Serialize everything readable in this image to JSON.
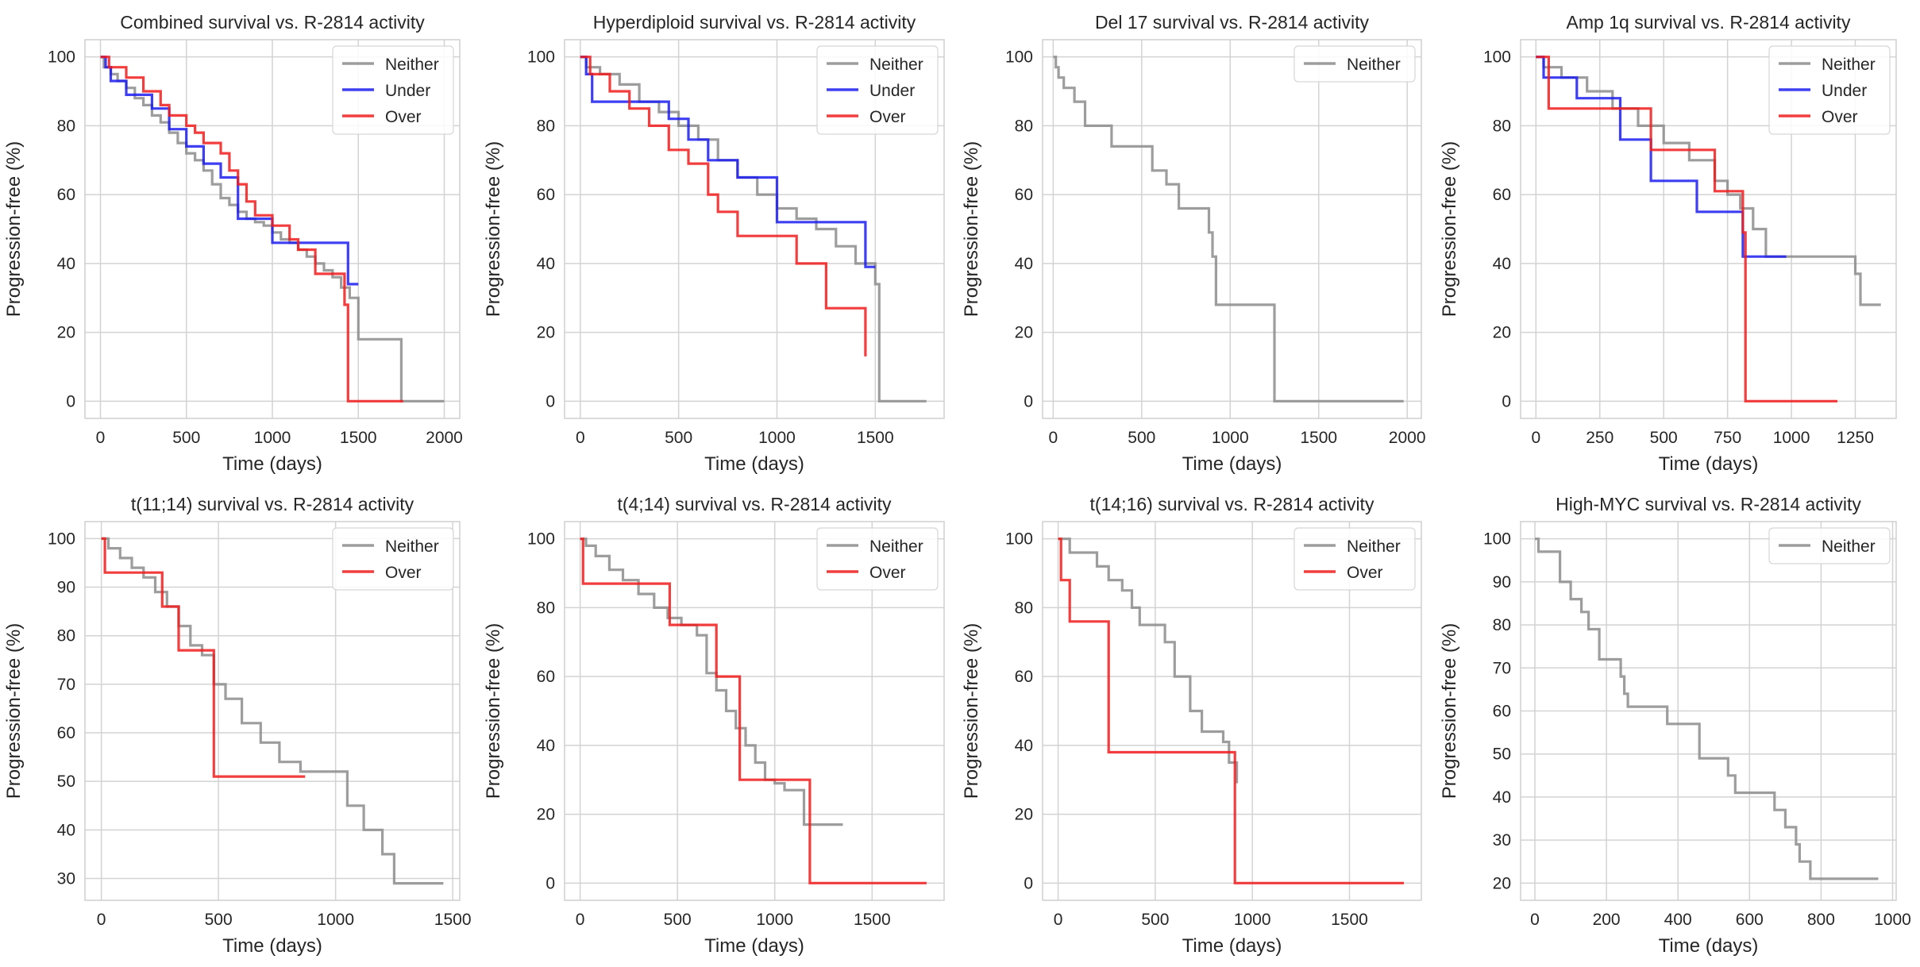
{
  "figure": {
    "background": "#ffffff",
    "grid_color": "#d3d3d3"
  },
  "series_colors": {
    "Neither": "#8c8c8c",
    "Under": "#1c1cf0",
    "Over": "#f01c1c"
  },
  "chart_data": [
    {
      "type": "line",
      "title": "Combined survival vs. R-2814 activity",
      "xlabel": "Time (days)",
      "ylabel": "Progression-free (%)",
      "xlim": [
        -90,
        2090
      ],
      "ylim": [
        -5,
        105
      ],
      "xticks": [
        0,
        500,
        1000,
        1500,
        2000
      ],
      "yticks": [
        0,
        20,
        40,
        60,
        80,
        100
      ],
      "grid": true,
      "legend": "top-right",
      "series": [
        {
          "name": "Neither",
          "x": [
            0,
            20,
            60,
            100,
            150,
            200,
            250,
            300,
            350,
            400,
            450,
            500,
            550,
            600,
            650,
            700,
            750,
            800,
            850,
            900,
            950,
            1000,
            1050,
            1100,
            1150,
            1200,
            1250,
            1300,
            1350,
            1400,
            1450,
            1500,
            1750,
            2000
          ],
          "y": [
            100,
            97,
            95,
            93,
            91,
            88,
            86,
            83,
            81,
            78,
            75,
            72,
            70,
            67,
            63,
            59,
            57,
            55,
            53,
            52,
            51,
            49,
            47,
            46,
            44,
            42,
            40,
            38,
            36,
            33,
            30,
            18,
            0,
            0
          ]
        },
        {
          "name": "Under",
          "x": [
            0,
            30,
            60,
            150,
            300,
            400,
            500,
            600,
            700,
            800,
            1000,
            1440,
            1500
          ],
          "y": [
            100,
            97,
            93,
            89,
            85,
            79,
            74,
            69,
            65,
            53,
            46,
            34,
            34
          ]
        },
        {
          "name": "Over",
          "x": [
            0,
            50,
            150,
            250,
            350,
            400,
            500,
            550,
            600,
            700,
            750,
            800,
            850,
            900,
            1000,
            1100,
            1150,
            1250,
            1420,
            1440,
            1760
          ],
          "y": [
            100,
            97,
            94,
            90,
            86,
            83,
            80,
            78,
            75,
            72,
            67,
            63,
            58,
            54,
            51,
            47,
            44,
            37,
            28,
            0,
            0
          ]
        }
      ]
    },
    {
      "type": "line",
      "title": "Hyperdiploid survival vs. R-2814 activity",
      "xlabel": "Time (days)",
      "ylabel": "Progression-free (%)",
      "xlim": [
        -80,
        1850
      ],
      "ylim": [
        -5,
        105
      ],
      "xticks": [
        0,
        500,
        1000,
        1500
      ],
      "yticks": [
        0,
        20,
        40,
        60,
        80,
        100
      ],
      "grid": true,
      "legend": "top-right",
      "series": [
        {
          "name": "Neither",
          "x": [
            0,
            30,
            100,
            200,
            300,
            400,
            500,
            600,
            700,
            800,
            900,
            1000,
            1100,
            1200,
            1300,
            1400,
            1500,
            1520,
            1760
          ],
          "y": [
            100,
            97,
            95,
            92,
            87,
            84,
            80,
            76,
            70,
            65,
            60,
            56,
            53,
            50,
            45,
            40,
            34,
            0,
            0
          ]
        },
        {
          "name": "Under",
          "x": [
            0,
            30,
            60,
            350,
            450,
            550,
            650,
            800,
            1000,
            1450,
            1500
          ],
          "y": [
            100,
            95,
            87,
            87,
            82,
            76,
            70,
            65,
            52,
            39,
            39
          ]
        },
        {
          "name": "Over",
          "x": [
            0,
            50,
            150,
            250,
            350,
            450,
            550,
            650,
            700,
            800,
            1100,
            1250,
            1450
          ],
          "y": [
            100,
            95,
            90,
            85,
            80,
            73,
            69,
            60,
            55,
            48,
            40,
            27,
            13
          ]
        }
      ]
    },
    {
      "type": "line",
      "title": "Del 17 survival vs. R-2814 activity",
      "xlabel": "Time (days)",
      "ylabel": "Progression-free (%)",
      "xlim": [
        -60,
        2080
      ],
      "ylim": [
        -5,
        105
      ],
      "xticks": [
        0,
        500,
        1000,
        1500,
        2000
      ],
      "yticks": [
        0,
        20,
        40,
        60,
        80,
        100
      ],
      "grid": true,
      "legend": "top-right",
      "series": [
        {
          "name": "Neither",
          "x": [
            0,
            15,
            30,
            60,
            120,
            180,
            330,
            560,
            640,
            710,
            880,
            900,
            920,
            1250,
            1980
          ],
          "y": [
            100,
            97,
            94,
            91,
            87,
            80,
            74,
            67,
            63,
            56,
            49,
            42,
            28,
            0,
            0
          ]
        }
      ]
    },
    {
      "type": "line",
      "title": "Amp 1q survival vs. R-2814 activity",
      "xlabel": "Time (days)",
      "ylabel": "Progression-free (%)",
      "xlim": [
        -60,
        1410
      ],
      "ylim": [
        -5,
        105
      ],
      "xticks": [
        0,
        250,
        500,
        750,
        1000,
        1250
      ],
      "yticks": [
        0,
        20,
        40,
        60,
        80,
        100
      ],
      "grid": true,
      "legend": "top-right",
      "series": [
        {
          "name": "Neither",
          "x": [
            0,
            30,
            100,
            200,
            300,
            400,
            500,
            600,
            700,
            750,
            800,
            850,
            900,
            1250,
            1270,
            1350
          ],
          "y": [
            100,
            97,
            94,
            90,
            85,
            80,
            75,
            70,
            64,
            60,
            56,
            50,
            42,
            37,
            28,
            28
          ]
        },
        {
          "name": "Under",
          "x": [
            0,
            30,
            160,
            330,
            450,
            630,
            810,
            980
          ],
          "y": [
            100,
            94,
            88,
            76,
            64,
            55,
            42,
            42
          ]
        },
        {
          "name": "Over",
          "x": [
            0,
            50,
            450,
            700,
            810,
            820,
            1180
          ],
          "y": [
            100,
            85,
            73,
            61,
            49,
            0,
            0
          ]
        }
      ]
    },
    {
      "type": "line",
      "title": "t(11;14) survival vs. R-2814 activity",
      "xlabel": "Time (days)",
      "ylabel": "Progression-free (%)",
      "xlim": [
        -70,
        1530
      ],
      "ylim": [
        25.5,
        103.5
      ],
      "xticks": [
        0,
        500,
        1000,
        1500
      ],
      "yticks": [
        30,
        40,
        50,
        60,
        70,
        80,
        90,
        100
      ],
      "grid": true,
      "legend": "top-right",
      "series": [
        {
          "name": "Neither",
          "x": [
            0,
            30,
            80,
            130,
            180,
            230,
            280,
            330,
            380,
            430,
            480,
            530,
            600,
            680,
            760,
            850,
            1050,
            1120,
            1200,
            1250,
            1460
          ],
          "y": [
            100,
            98,
            96,
            94,
            92,
            89,
            86,
            82,
            78,
            76,
            70,
            67,
            62,
            58,
            54,
            52,
            45,
            40,
            35,
            29,
            29
          ]
        },
        {
          "name": "Over",
          "x": [
            0,
            15,
            260,
            330,
            480,
            870
          ],
          "y": [
            100,
            93,
            86,
            77,
            51,
            51
          ]
        }
      ]
    },
    {
      "type": "line",
      "title": "t(4;14) survival vs. R-2814 activity",
      "xlabel": "Time (days)",
      "ylabel": "Progression-free (%)",
      "xlim": [
        -80,
        1870
      ],
      "ylim": [
        -5,
        105
      ],
      "xticks": [
        0,
        500,
        1000,
        1500
      ],
      "yticks": [
        0,
        20,
        40,
        60,
        80,
        100
      ],
      "grid": true,
      "legend": "top-right",
      "series": [
        {
          "name": "Neither",
          "x": [
            0,
            30,
            80,
            150,
            220,
            300,
            380,
            450,
            520,
            600,
            650,
            700,
            750,
            800,
            850,
            900,
            950,
            1000,
            1050,
            1150,
            1350
          ],
          "y": [
            100,
            98,
            95,
            91,
            88,
            84,
            80,
            77,
            75,
            72,
            61,
            56,
            50,
            45,
            40,
            35,
            30,
            29,
            27,
            17,
            17
          ]
        },
        {
          "name": "Over",
          "x": [
            0,
            15,
            460,
            700,
            820,
            1180,
            1780
          ],
          "y": [
            100,
            87,
            75,
            60,
            30,
            0,
            0
          ]
        }
      ]
    },
    {
      "type": "line",
      "title": "t(14;16) survival vs. R-2814 activity",
      "xlabel": "Time (days)",
      "ylabel": "Progression-free (%)",
      "xlim": [
        -80,
        1870
      ],
      "ylim": [
        -5,
        105
      ],
      "xticks": [
        0,
        500,
        1000,
        1500
      ],
      "yticks": [
        0,
        20,
        40,
        60,
        80,
        100
      ],
      "grid": true,
      "legend": "top-right",
      "series": [
        {
          "name": "Neither",
          "x": [
            0,
            60,
            200,
            260,
            330,
            380,
            420,
            550,
            600,
            680,
            740,
            850,
            880,
            920
          ],
          "y": [
            100,
            96,
            92,
            88,
            85,
            80,
            75,
            70,
            60,
            50,
            44,
            41,
            35,
            29
          ]
        },
        {
          "name": "Over",
          "x": [
            0,
            15,
            60,
            260,
            910,
            1780
          ],
          "y": [
            100,
            88,
            76,
            38,
            0,
            0
          ]
        }
      ]
    },
    {
      "type": "line",
      "title": "High-MYC survival vs. R-2814 activity",
      "xlabel": "Time (days)",
      "ylabel": "Progression-free (%)",
      "xlim": [
        -40,
        1010
      ],
      "ylim": [
        16,
        104
      ],
      "xticks": [
        0,
        200,
        400,
        600,
        800,
        1000
      ],
      "yticks": [
        20,
        30,
        40,
        50,
        60,
        70,
        80,
        90,
        100
      ],
      "grid": true,
      "legend": "top-right",
      "series": [
        {
          "name": "Neither",
          "x": [
            0,
            10,
            70,
            100,
            130,
            150,
            180,
            240,
            250,
            260,
            370,
            460,
            540,
            560,
            670,
            700,
            730,
            740,
            770,
            960
          ],
          "y": [
            100,
            97,
            90,
            86,
            83,
            79,
            72,
            68,
            64,
            61,
            57,
            49,
            45,
            41,
            37,
            33,
            29,
            25,
            21,
            21
          ]
        }
      ]
    }
  ]
}
